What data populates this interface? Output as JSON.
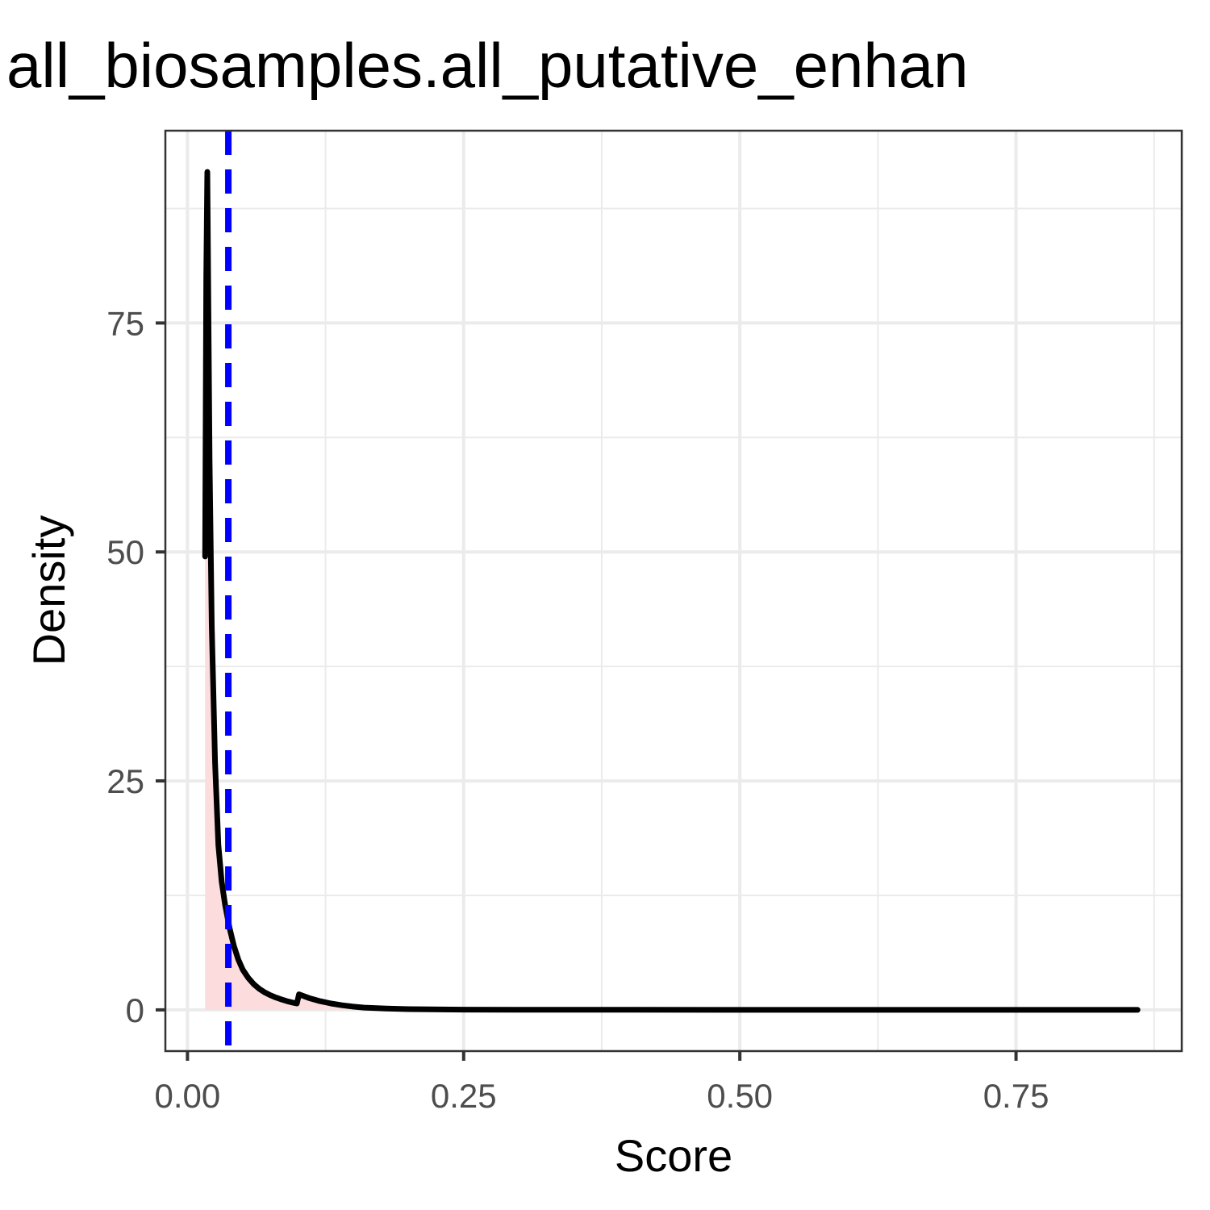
{
  "chart_data": {
    "type": "area",
    "title": "all_biosamples.all_putative_enhan",
    "xlabel": "Score",
    "ylabel": "Density",
    "xlim": [
      -0.02,
      0.9
    ],
    "ylim": [
      -4.5,
      96
    ],
    "x_ticks": [
      0.0,
      0.25,
      0.5,
      0.75
    ],
    "x_tick_labels": [
      "0.00",
      "0.25",
      "0.50",
      "0.75"
    ],
    "y_ticks": [
      0,
      25,
      50,
      75
    ],
    "y_tick_labels": [
      "0",
      "25",
      "50",
      "75"
    ],
    "grid": true,
    "legend": "none",
    "series": [
      {
        "x": [
          0.016,
          0.017,
          0.018,
          0.02,
          0.022,
          0.025,
          0.028,
          0.031,
          0.034,
          0.038,
          0.042,
          0.046,
          0.05,
          0.055,
          0.06,
          0.065,
          0.07,
          0.075,
          0.08,
          0.085,
          0.09,
          0.095,
          0.099,
          0.101,
          0.11,
          0.12,
          0.13,
          0.14,
          0.15,
          0.16,
          0.18,
          0.2,
          0.22,
          0.25,
          0.3,
          0.4,
          0.5,
          0.6,
          0.7,
          0.8,
          0.86
        ],
        "y": [
          49.5,
          80.0,
          91.5,
          60.0,
          42.0,
          27.0,
          18.0,
          14.0,
          11.5,
          9.0,
          7.0,
          5.5,
          4.4,
          3.5,
          2.8,
          2.3,
          1.9,
          1.6,
          1.35,
          1.15,
          0.95,
          0.8,
          0.7,
          1.7,
          1.3,
          0.95,
          0.7,
          0.5,
          0.35,
          0.25,
          0.14,
          0.08,
          0.05,
          0.03,
          0.015,
          0.008,
          0.005,
          0.003,
          0.002,
          0.001,
          0.0
        ],
        "line_color": "#000000",
        "fill_color": "#fcdcdc"
      }
    ],
    "vline": {
      "x": 0.037,
      "color": "#0000ff",
      "style": "dashed"
    }
  }
}
